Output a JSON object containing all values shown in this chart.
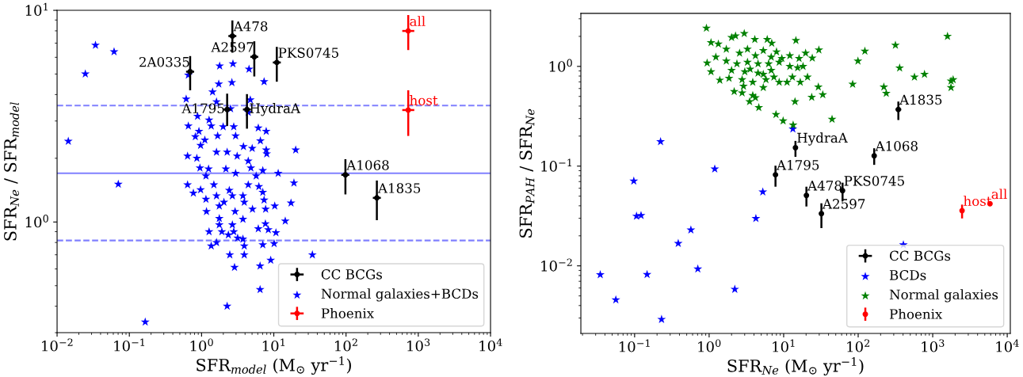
{
  "chart_data": [
    {
      "type": "scatter",
      "xlabel": "SFR$_{model}$ (M$_{⊙}$ yr$^{−1}$)",
      "ylabel": "SFR$_{Ne}$ / SFR$_{model}$",
      "log": "xy",
      "grid": false,
      "legend": "bottom right",
      "xlim": [
        0.01,
        10000
      ],
      "ylim": [
        0.3,
        10
      ],
      "xticks": [
        {
          "value": 0.01,
          "label": "10$^{−2}$"
        },
        {
          "value": 0.1,
          "label": "10$^{−1}$"
        },
        {
          "value": 1,
          "label": "10$^{0}$"
        },
        {
          "value": 10,
          "label": "10$^{1}$"
        },
        {
          "value": 100,
          "label": "10$^{2}$"
        },
        {
          "value": 1000,
          "label": "10$^{3}$"
        },
        {
          "value": 10000,
          "label": "10$^{4}$"
        }
      ],
      "yticks": [
        {
          "value": 1,
          "label": "10$^{0}$"
        },
        {
          "value": 10,
          "label": "10$^{1}$"
        }
      ],
      "ref_lines": [
        {
          "axis": "y",
          "value": 1.7,
          "color": "#8080ff",
          "line_style": "solid"
        },
        {
          "axis": "y",
          "value": 3.55,
          "color": "#8080ff",
          "line_style": "dashed"
        },
        {
          "axis": "y",
          "value": 0.818,
          "color": "#8080ff",
          "line_style": "dashed"
        }
      ],
      "series": [
        {
          "name": "CC BCGs",
          "color": "#000000",
          "marker": "circle",
          "x": [
            0.695,
            2.67,
            5.37,
            11.0,
            2.26,
            4.25,
            98,
            267
          ],
          "values": [
            5.13,
            7.56,
            6.03,
            5.67,
            3.4,
            3.4,
            1.67,
            1.3
          ],
          "errors": [
            [
              4.19,
              6.08
            ],
            [
              6.31,
              8.96
            ],
            [
              4.87,
              7.14
            ],
            [
              4.6,
              6.72
            ],
            [
              2.84,
              4.04
            ],
            [
              2.76,
              4.02
            ],
            [
              1.35,
              1.98
            ],
            [
              1.02,
              1.57
            ]
          ],
          "xerrors": [
            [
              0.61,
              0.79
            ],
            [
              2.35,
              3.03
            ],
            [
              4.73,
              6.09
            ],
            [
              9.7,
              12.5
            ],
            [
              1.99,
              2.57
            ],
            [
              3.74,
              4.82
            ],
            [
              86,
              111
            ],
            [
              235,
              303
            ]
          ]
        },
        {
          "name": "Normal galaxies+BCDs",
          "color": "#0000ff",
          "marker": "star",
          "x": [
            0.034,
            0.0615,
            0.0246,
            0.0143,
            0.0704,
            0.166,
            0.656,
            1.78,
            2.72,
            4.54,
            1.73,
            2.63,
            7.34,
            1.42,
            0.612,
            1.61,
            4.73,
            2.52,
            4.43,
            0.88,
            0.656,
            1.27,
            1.36,
            1.99,
            2.79,
            6.1,
            7.85,
            0.92,
            0.82,
            2.96,
            1.67,
            1.11,
            6.52,
            20.1,
            0.97,
            3.8,
            5.02,
            7.85,
            7.98,
            0.64,
            0.86,
            1.61,
            2.26,
            3.11,
            4.43,
            0.95,
            1.25,
            2.17,
            4.82,
            7.04,
            11.5,
            2.96,
            1.15,
            5.7,
            0.64,
            19.0,
            0.77,
            0.97,
            1.48,
            2.42,
            1.61,
            2.67,
            3.74,
            4.43,
            6.21,
            7.04,
            7.34,
            1.15,
            2.04,
            3.9,
            17.3,
            1.76,
            5.07,
            7.71,
            10.3,
            1.17,
            2.91,
            1.76,
            3.74,
            14.4,
            2.67,
            1.76,
            7.65,
            6.1,
            1.27,
            1.91,
            2.79,
            8.4,
            10.7,
            2.35,
            3.16,
            3.74,
            1.36,
            1.61,
            3.9,
            7.04,
            10.1,
            2.46,
            3.9,
            34.2,
            9.06,
            2.86,
            6.46,
            6.46,
            2.26
          ],
          "values": [
            6.84,
            6.37,
            5.01,
            2.41,
            1.51,
            0.337,
            4.94,
            5.46,
            5.59,
            5.27,
            4.49,
            4.56,
            4.6,
            4.12,
            3.81,
            3.7,
            3.78,
            3.43,
            3.3,
            3.16,
            2.84,
            3.03,
            2.84,
            2.82,
            2.82,
            2.78,
            2.68,
            2.68,
            2.53,
            2.55,
            2.55,
            2.44,
            2.42,
            2.19,
            2.3,
            2.27,
            2.23,
            2.19,
            2.1,
            2.05,
            2.0,
            2.14,
            2.14,
            2.05,
            1.94,
            1.8,
            1.78,
            1.78,
            1.8,
            1.75,
            1.7,
            1.7,
            1.65,
            1.65,
            1.5,
            1.53,
            1.37,
            1.42,
            1.5,
            1.41,
            1.33,
            1.33,
            1.33,
            1.5,
            1.47,
            1.38,
            1.27,
            1.28,
            1.24,
            1.24,
            1.23,
            1.19,
            1.15,
            1.15,
            1.19,
            1.12,
            1.12,
            1.04,
            1.03,
            1.01,
            0.97,
            0.97,
            0.98,
            0.93,
            0.9,
            0.9,
            0.9,
            0.92,
            0.89,
            0.87,
            0.84,
            0.83,
            0.77,
            0.8,
            0.77,
            0.78,
            0.79,
            0.7,
            0.7,
            0.7,
            0.66,
            0.61,
            0.62,
            0.48,
            0.4
          ]
        },
        {
          "name": "Phoenix",
          "color": "#ff0000",
          "marker": "circle",
          "x": [
            726,
            726
          ],
          "values": [
            7.99,
            3.38
          ],
          "errors": [
            [
              6.49,
              9.5
            ],
            [
              2.55,
              4.19
            ]
          ],
          "xerrors": [
            [
              600,
              880
            ],
            [
              600,
              880
            ]
          ]
        }
      ],
      "annotations": [
        {
          "text": "2A0335",
          "x": 0.695,
          "y": 5.13
        },
        {
          "text": "A478",
          "x": 2.67,
          "y": 7.56
        },
        {
          "text": "A2597",
          "x": 5.37,
          "y": 6.03
        },
        {
          "text": "PKS0745",
          "x": 11.0,
          "y": 5.67
        },
        {
          "text": "A1795",
          "x": 2.26,
          "y": 3.4
        },
        {
          "text": "HydraA",
          "x": 4.25,
          "y": 3.4
        },
        {
          "text": "A1068",
          "x": 98,
          "y": 1.67
        },
        {
          "text": "A1835",
          "x": 267,
          "y": 1.3
        },
        {
          "text": "all",
          "x": 726,
          "y": 7.99
        },
        {
          "text": "host",
          "x": 726,
          "y": 3.38
        }
      ]
    },
    {
      "type": "scatter",
      "xlabel": "SFR$_{Ne}$ (M$_{⊙}$ yr$^{−1}$)",
      "ylabel": "SFR$_{PAH}$ / SFR$_{Ne}$",
      "log": "xy",
      "grid": false,
      "legend": "bottom right",
      "xlim": [
        0.019,
        11000
      ],
      "ylim": [
        0.0021,
        3.4
      ],
      "xticks": [
        {
          "value": 0.1,
          "label": "10$^{−1}$"
        },
        {
          "value": 1,
          "label": "10$^{0}$"
        },
        {
          "value": 10,
          "label": "10$^{1}$"
        },
        {
          "value": 100,
          "label": "10$^{2}$"
        },
        {
          "value": 1000,
          "label": "10$^{3}$"
        },
        {
          "value": 10000,
          "label": "10$^{4}$"
        }
      ],
      "yticks": [
        {
          "value": 0.01,
          "label": "10$^{−2}$"
        },
        {
          "value": 0.1,
          "label": "10$^{−1}$"
        },
        {
          "value": 1,
          "label": "10$^{0}$"
        }
      ],
      "series": [
        {
          "name": "CC BCGs",
          "color": "#000000",
          "marker": "circle",
          "x": [
            14.4,
            7.77,
            20.2,
            61.7,
            32.1,
            164,
            346
          ],
          "values": [
            0.153,
            0.0819,
            0.0509,
            0.0568,
            0.0334,
            0.127,
            0.37
          ],
          "errors": [
            [
              0.124,
              0.179
            ],
            [
              0.0622,
              0.101
            ],
            [
              0.0394,
              0.0622
            ],
            [
              0.0446,
              0.0682
            ],
            [
              0.0239,
              0.0424
            ],
            [
              0.103,
              0.151
            ],
            [
              0.29,
              0.444
            ]
          ],
          "xerrors": [
            null,
            null,
            null,
            null,
            null,
            null,
            [
              318,
              378
            ]
          ]
        },
        {
          "name": "BCDs",
          "color": "#0000ff",
          "marker": "star",
          "x": [
            0.223,
            0.0975,
            1.19,
            0.106,
            0.122,
            5.25,
            4.24,
            0.569,
            0.385,
            0.0346,
            0.147,
            0.705,
            0.056,
            2.21,
            0.23,
            13.3,
            404
          ],
          "values": [
            0.176,
            0.0708,
            0.0937,
            0.0315,
            0.032,
            0.0551,
            0.0299,
            0.0229,
            0.0168,
            0.00816,
            0.0082,
            0.00933,
            0.00457,
            0.00583,
            0.00291,
            0.236,
            0.0163
          ]
        },
        {
          "name": "Normal galaxies",
          "color": "#008000",
          "marker": "star",
          "x": [
            0.92,
            1.06,
            1.33,
            0.94,
            1.06,
            1.39,
            1.23,
            2.0,
            2.96,
            2.26,
            4.1,
            6.02,
            6.92,
            14.6,
            1.7,
            3.27,
            5.33,
            8.02,
            12.1,
            16.1,
            1.7,
            2.36,
            3.27,
            4.53,
            6.28,
            8.71,
            2.0,
            3.01,
            4.53,
            6.81,
            12.1,
            18.2,
            1.85,
            2.77,
            3.85,
            5.79,
            8.71,
            16.7,
            2.17,
            2.77,
            3.85,
            5.33,
            3.49,
            4.18,
            14.2,
            4.64,
            7.89,
            9.84,
            13.4,
            9.45,
            19.7,
            29.7,
            24.2,
            15.4,
            13.1,
            20.9,
            11.1,
            29.2,
            33.5,
            23.8,
            44.6,
            84.3,
            99.3,
            123,
            316,
            360,
            221,
            238,
            569,
            776,
            1580,
            1760,
            1880,
            1760,
            2.56,
            4.18,
            6.81,
            3.55,
            5.33,
            7.4,
            2.89
          ],
          "values": [
            2.42,
            1.73,
            1.68,
            1.08,
            0.885,
            0.728,
            1.24,
            1.95,
            2.14,
            2.02,
            1.86,
            1.86,
            1.71,
            1.82,
            1.49,
            1.49,
            1.44,
            1.4,
            1.28,
            1.2,
            1.13,
            1.06,
            1.1,
            1.06,
            1.06,
            1.1,
            0.912,
            0.885,
            0.857,
            0.912,
            1.0,
            1.0,
            0.76,
            0.737,
            0.693,
            0.737,
            0.693,
            0.693,
            0.56,
            0.543,
            0.511,
            0.614,
            0.444,
            0.486,
            0.444,
            0.386,
            0.329,
            0.284,
            0.258,
            1.2,
            1.36,
            1.46,
            1.21,
            0.97,
            0.783,
            0.783,
            0.693,
            0.621,
            0.52,
            0.49,
            0.295,
            0.664,
            1.13,
            1.42,
            1.63,
            0.964,
            0.621,
            0.537,
            0.783,
            0.832,
            2.0,
            0.714,
            0.737,
            0.614,
            1.36,
            1.28,
            1.24,
            0.94,
            0.832,
            0.783,
            0.633
          ]
        },
        {
          "name": "Phoenix",
          "color": "#ff0000",
          "marker": "circle",
          "x": [
            2477,
            5870
          ],
          "values": [
            0.0357,
            0.0419
          ],
          "errors": [
            [
              0.0299,
              0.0411
            ],
            null
          ]
        }
      ],
      "annotations": [
        {
          "text": "HydraA",
          "x": 14.4,
          "y": 0.153
        },
        {
          "text": "A1795",
          "x": 7.77,
          "y": 0.0819
        },
        {
          "text": "A478",
          "x": 20.2,
          "y": 0.0509
        },
        {
          "text": "PKS0745",
          "x": 61.7,
          "y": 0.0568
        },
        {
          "text": "A2597",
          "x": 32.1,
          "y": 0.0334
        },
        {
          "text": "A1068",
          "x": 164,
          "y": 0.127
        },
        {
          "text": "A1835",
          "x": 346,
          "y": 0.37
        },
        {
          "text": "host",
          "x": 2477,
          "y": 0.0357
        },
        {
          "text": "all",
          "x": 5870,
          "y": 0.0419
        }
      ]
    }
  ]
}
